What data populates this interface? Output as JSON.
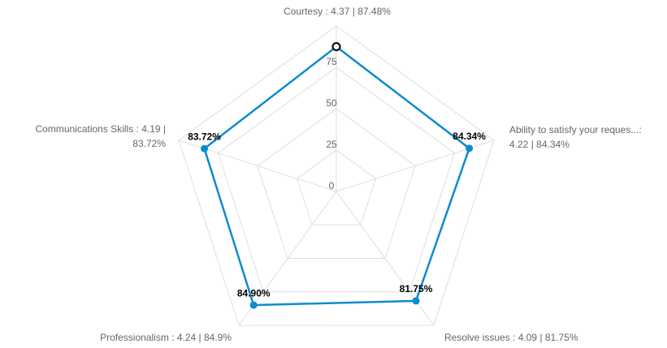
{
  "chart_data": {
    "type": "radar",
    "categories": [
      [
        "Courtesy  : 4.37 | 87.48%"
      ],
      [
        "Ability to satisfy your reques...:",
        "4.22 | 84.34%"
      ],
      [
        "Resolve issues  : 4.09 | 81.75%"
      ],
      [
        "Professionalism  : 4.24 | 84.9%"
      ],
      [
        "Communications Skills  : 4.19 |",
        "83.72%"
      ]
    ],
    "values": [
      87.48,
      84.34,
      81.75,
      84.9,
      83.72
    ],
    "value_labels": [
      null,
      "84.34%",
      "81.75%",
      "84.90%",
      "83.72%"
    ],
    "color": "#0b8bd0",
    "ylim": [
      0,
      100
    ],
    "yticks": [
      0,
      25,
      50,
      75
    ],
    "grid": true
  }
}
